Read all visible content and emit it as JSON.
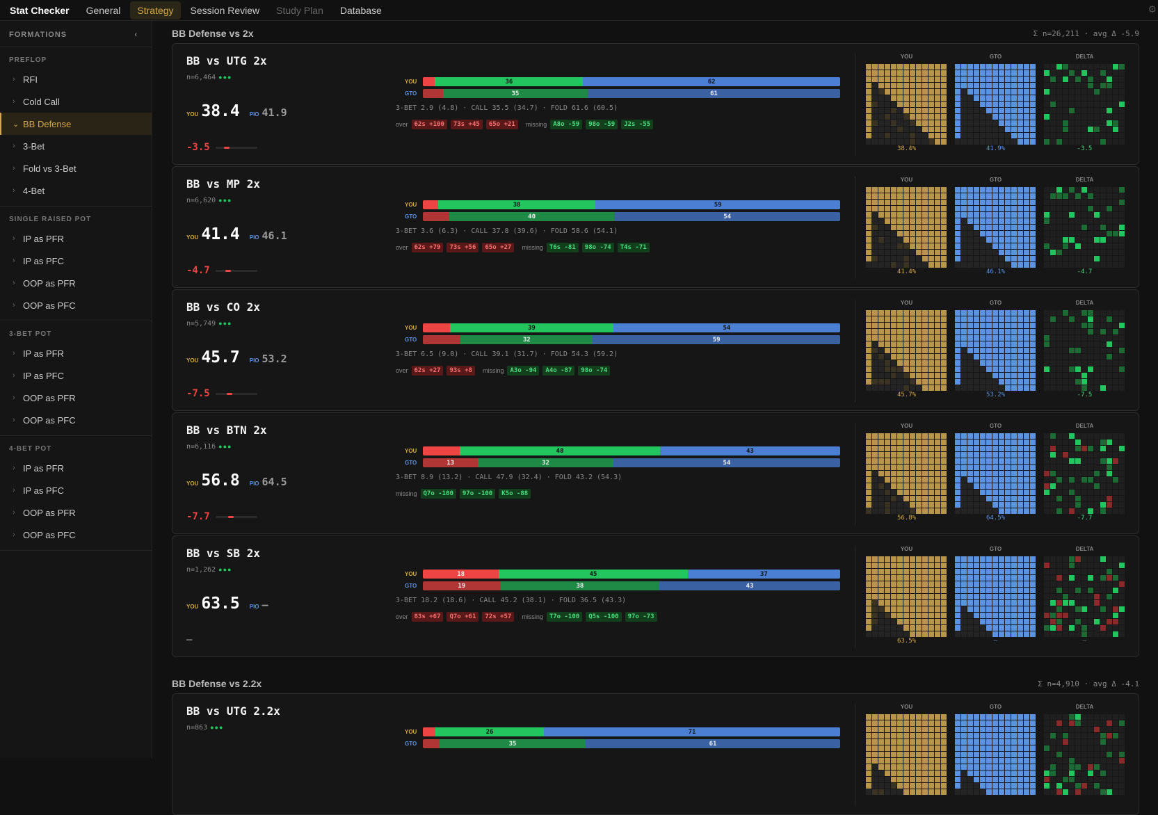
{
  "header": {
    "brand": "Stat Checker",
    "tabs": [
      "General",
      "Strategy",
      "Session Review",
      "Study Plan",
      "Database"
    ],
    "active_tab": 1,
    "muted_tab": 3
  },
  "sidebar": {
    "title": "FORMATIONS",
    "groups": [
      {
        "title": "PREFLOP",
        "items": [
          "RFI",
          "Cold Call",
          "BB Defense",
          "3-Bet",
          "Fold vs 3-Bet",
          "4-Bet"
        ]
      },
      {
        "title": "SINGLE RAISED POT",
        "items": [
          "IP as PFR",
          "IP as PFC",
          "OOP as PFR",
          "OOP as PFC"
        ]
      },
      {
        "title": "3-BET POT",
        "items": [
          "IP as PFR",
          "IP as PFC",
          "OOP as PFR",
          "OOP as PFC"
        ]
      },
      {
        "title": "4-BET POT",
        "items": [
          "IP as PFR",
          "IP as PFC",
          "OOP as PFR",
          "OOP as PFC"
        ]
      }
    ],
    "active": {
      "group": 0,
      "item": 2
    }
  },
  "labels": {
    "you": "YOU",
    "pio": "PIO",
    "gto": "GTO",
    "delta": "DELTA",
    "over": "over",
    "missing": "missing"
  },
  "sections": [
    {
      "title": "BB Defense vs 2x",
      "summary": "Σ n=26,211 · avg Δ -5.9",
      "cards": [
        {
          "title": "BB vs UTG 2x",
          "n": "n=6,464",
          "you": "38.4",
          "pio": "41.9",
          "delta": "-3.5",
          "bars": {
            "you": {
              "values": [
                2.9,
                35.5,
                61.6
              ],
              "value_labels": [
                null,
                "36",
                "62"
              ]
            },
            "gto": {
              "values": [
                4.8,
                34.7,
                60.5
              ],
              "value_labels": [
                null,
                "35",
                "61"
              ]
            }
          },
          "stats": "3-BET 2.9 (4.8) · CALL 35.5 (34.7) · FOLD 61.6 (60.5)",
          "over": [
            "62s +100",
            "73s +45",
            "65o +21"
          ],
          "missing": [
            "A8o -59",
            "98o -59",
            "J2s -55"
          ],
          "grid_footers": [
            "38.4%",
            "41.9%",
            "-3.5"
          ]
        },
        {
          "title": "BB vs MP 2x",
          "n": "n=6,620",
          "you": "41.4",
          "pio": "46.1",
          "delta": "-4.7",
          "bars": {
            "you": {
              "values": [
                3.6,
                37.8,
                58.6
              ],
              "value_labels": [
                null,
                "38",
                "59"
              ]
            },
            "gto": {
              "values": [
                6.3,
                39.6,
                54.1
              ],
              "value_labels": [
                null,
                "40",
                "54"
              ]
            }
          },
          "stats": "3-BET 3.6 (6.3) · CALL 37.8 (39.6) · FOLD 58.6 (54.1)",
          "over": [
            "62s +79",
            "73s +56",
            "65o +27"
          ],
          "missing": [
            "T6s -81",
            "98o -74",
            "T4s -71"
          ],
          "grid_footers": [
            "41.4%",
            "46.1%",
            "-4.7"
          ]
        },
        {
          "title": "BB vs CO 2x",
          "n": "n=5,749",
          "you": "45.7",
          "pio": "53.2",
          "delta": "-7.5",
          "bars": {
            "you": {
              "values": [
                6.5,
                39.1,
                54.3
              ],
              "value_labels": [
                null,
                "39",
                "54"
              ]
            },
            "gto": {
              "values": [
                9.0,
                31.7,
                59.2
              ],
              "value_labels": [
                null,
                "32",
                "59"
              ]
            }
          },
          "stats": "3-BET 6.5 (9.0) · CALL 39.1 (31.7) · FOLD 54.3 (59.2)",
          "over": [
            "62s +27",
            "93s +8"
          ],
          "missing": [
            "A3o -94",
            "A4o -87",
            "98o -74"
          ],
          "grid_footers": [
            "45.7%",
            "53.2%",
            "-7.5"
          ]
        },
        {
          "title": "BB vs BTN 2x",
          "n": "n=6,116",
          "you": "56.8",
          "pio": "64.5",
          "delta": "-7.7",
          "bars": {
            "you": {
              "values": [
                8.9,
                47.9,
                43.2
              ],
              "value_labels": [
                null,
                "48",
                "43"
              ]
            },
            "gto": {
              "values": [
                13.2,
                32.4,
                54.3
              ],
              "value_labels": [
                "13",
                "32",
                "54"
              ]
            }
          },
          "stats": "3-BET 8.9 (13.2) · CALL 47.9 (32.4) · FOLD 43.2 (54.3)",
          "over": [],
          "missing": [
            "Q7o -100",
            "97o -100",
            "K5o -88"
          ],
          "grid_footers": [
            "56.8%",
            "64.5%",
            "-7.7"
          ]
        },
        {
          "title": "BB vs SB 2x",
          "n": "n=1,262",
          "you": "63.5",
          "pio": "—",
          "delta": "—",
          "bars": {
            "you": {
              "values": [
                18.2,
                45.2,
                36.5
              ],
              "value_labels": [
                "18",
                "45",
                "37"
              ]
            },
            "gto": {
              "values": [
                18.6,
                38.1,
                43.3
              ],
              "value_labels": [
                "19",
                "38",
                "43"
              ]
            }
          },
          "stats": "3-BET 18.2 (18.6) · CALL 45.2 (38.1) · FOLD 36.5 (43.3)",
          "over": [
            "83s +67",
            "Q7o +61",
            "72s +57"
          ],
          "missing": [
            "T7o -100",
            "Q5s -100",
            "97o -73"
          ],
          "grid_footers": [
            "63.5%",
            "—",
            "—"
          ]
        }
      ]
    },
    {
      "title": "BB Defense vs 2.2x",
      "summary": "Σ n=4,910 · avg Δ -4.1",
      "cards": [
        {
          "title": "BB vs UTG 2.2x",
          "n": "n=863",
          "bars": {
            "you": {
              "values": [
                3,
                26,
                71
              ],
              "value_labels": [
                null,
                "26",
                "71"
              ]
            },
            "gto": {
              "values": [
                4,
                35,
                61
              ],
              "value_labels": [
                null,
                "35",
                "61"
              ]
            }
          }
        }
      ]
    }
  ]
}
